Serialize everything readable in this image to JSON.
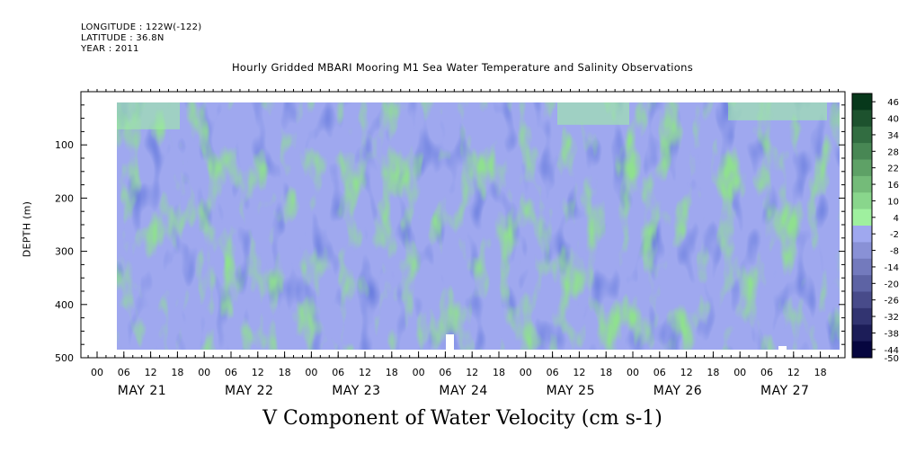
{
  "header": {
    "longitude": "LONGITUDE : 122W(-122)",
    "latitude": "LATITUDE : 36.8N",
    "year": "YEAR : 2011"
  },
  "chart_data": {
    "type": "heatmap",
    "title": "Hourly Gridded MBARI Mooring M1 Sea Water Temperature and Salinity Observations",
    "xlabel": "V Component of Water Velocity (cm s-1)",
    "ylabel": "DEPTH (m)",
    "y_ticks": [
      100,
      200,
      300,
      400,
      500
    ],
    "ylim": [
      500,
      0
    ],
    "x_hour_ticks": [
      "00",
      "06",
      "12",
      "18",
      "00",
      "06",
      "12",
      "18",
      "00",
      "06",
      "12",
      "18",
      "00",
      "06",
      "12",
      "18",
      "00",
      "06",
      "12",
      "18",
      "00",
      "06",
      "12",
      "18",
      "00",
      "06",
      "12",
      "18"
    ],
    "x_day_labels": [
      "MAY 21",
      "MAY 22",
      "MAY 23",
      "MAY 24",
      "MAY 25",
      "MAY 26",
      "MAY 27"
    ],
    "colorbar_levels": [
      "46",
      "40",
      "34",
      "28",
      "22",
      "16",
      "10",
      "4",
      "-2",
      "-8",
      "-14",
      "-20",
      "-26",
      "-32",
      "-38",
      "-44",
      "-50"
    ],
    "data_depth_range": [
      20,
      490
    ],
    "colormap_low": "#06063f",
    "colormap_mid_low": "#9fa8ef",
    "colormap_mid_high": "#9ff09f",
    "colormap_high": "#07381b"
  }
}
